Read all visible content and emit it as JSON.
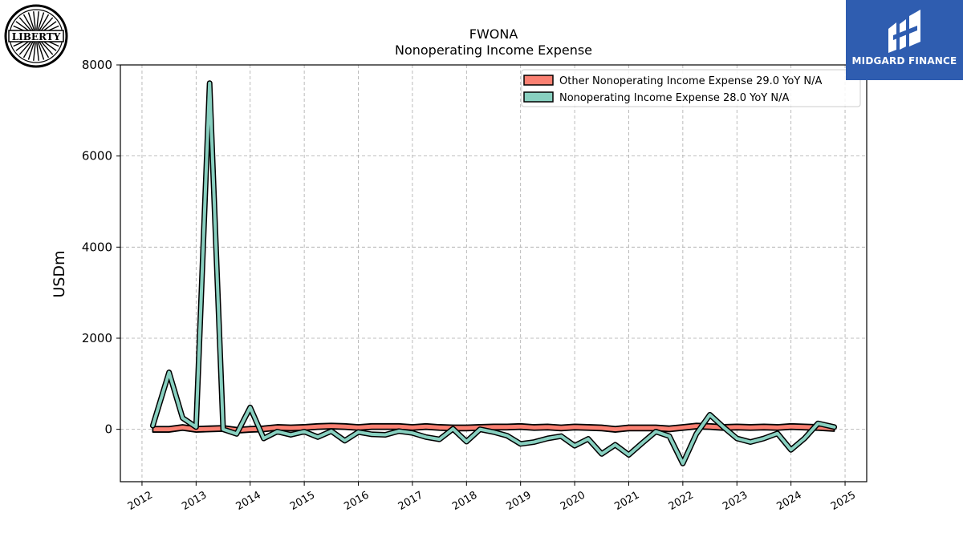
{
  "logos": {
    "left_text": "LIBERTY",
    "right_text": "MIDGARD FINANCE",
    "right_color": "#2f5db0"
  },
  "chart_data": {
    "type": "line",
    "title": "FWONA",
    "subtitle": "Nonoperating Income Expense",
    "xlabel": "",
    "ylabel": "USDm",
    "xlim": [
      2011.6,
      2025.4
    ],
    "ylim": [
      -1150,
      8000
    ],
    "yticks": [
      0,
      2000,
      4000,
      6000,
      8000
    ],
    "xticks": [
      2012,
      2013,
      2014,
      2015,
      2016,
      2017,
      2018,
      2019,
      2020,
      2021,
      2022,
      2023,
      2024,
      2025
    ],
    "grid": true,
    "legend_position": "top-right",
    "x": [
      2012.2,
      2012.5,
      2012.75,
      2013.0,
      2013.25,
      2013.5,
      2013.75,
      2014.0,
      2014.25,
      2014.5,
      2014.75,
      2015.0,
      2015.25,
      2015.5,
      2015.75,
      2016.0,
      2016.25,
      2016.5,
      2016.75,
      2017.0,
      2017.25,
      2017.5,
      2017.75,
      2018.0,
      2018.25,
      2018.5,
      2018.75,
      2019.0,
      2019.25,
      2019.5,
      2019.75,
      2020.0,
      2020.25,
      2020.5,
      2020.75,
      2021.0,
      2021.25,
      2021.5,
      2021.75,
      2022.0,
      2022.25,
      2022.5,
      2022.75,
      2023.0,
      2023.25,
      2023.5,
      2023.75,
      2024.0,
      2024.25,
      2024.5,
      2024.8
    ],
    "series": [
      {
        "name": "Other Nonoperating Income Expense",
        "legend_label": "Other Nonoperating Income Expense  29.0 YoY N/A",
        "color": "#fa8072",
        "style": "band",
        "band_halfwidth": 60,
        "values": [
          0,
          0,
          40,
          0,
          10,
          20,
          -20,
          0,
          10,
          40,
          30,
          40,
          60,
          70,
          60,
          40,
          60,
          60,
          60,
          40,
          60,
          40,
          30,
          30,
          40,
          50,
          50,
          60,
          40,
          50,
          30,
          50,
          40,
          30,
          0,
          30,
          30,
          30,
          10,
          40,
          70,
          60,
          40,
          50,
          40,
          50,
          40,
          60,
          50,
          40,
          20
        ]
      },
      {
        "name": "Nonoperating Income Expense",
        "legend_label": "Nonoperating Income Expense  28.0 YoY N/A",
        "color": "#88d0c0",
        "style": "line",
        "values": [
          80,
          1250,
          250,
          50,
          7600,
          0,
          -100,
          480,
          -200,
          -50,
          -120,
          -50,
          -170,
          -40,
          -250,
          -60,
          -110,
          -120,
          -40,
          -80,
          -170,
          -220,
          10,
          -270,
          0,
          -60,
          -140,
          -320,
          -280,
          -200,
          -150,
          -360,
          -210,
          -540,
          -340,
          -560,
          -300,
          -50,
          -150,
          -750,
          -100,
          320,
          50,
          -200,
          -280,
          -200,
          -90,
          -450,
          -200,
          130,
          50
        ]
      }
    ]
  }
}
